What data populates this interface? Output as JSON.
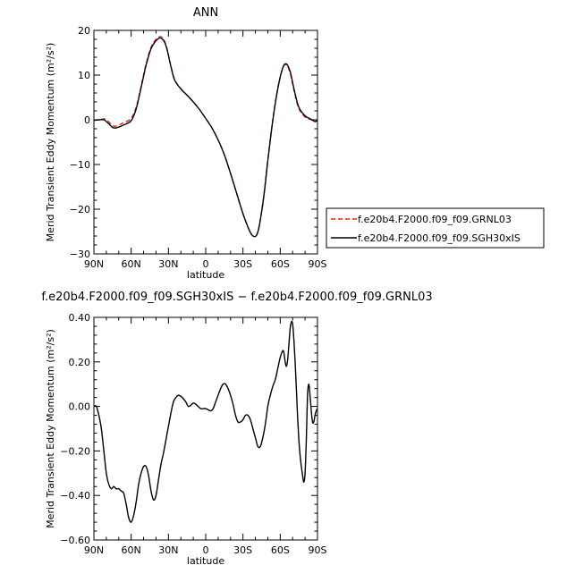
{
  "chart_data": [
    {
      "type": "line",
      "title": "ANN",
      "xlabel": "latitude",
      "ylabel": "Merid Transient Eddy Momentum  (m²/s²)",
      "x_ticks": [
        "90N",
        "60N",
        "30N",
        "0",
        "30S",
        "60S",
        "90S"
      ],
      "x_tick_values": [
        90,
        60,
        30,
        0,
        -30,
        -60,
        -90
      ],
      "y_ticks": [
        "20",
        "10",
        "0",
        "−10",
        "−20",
        "−30"
      ],
      "y_tick_values": [
        20,
        10,
        0,
        -10,
        -20,
        -30
      ],
      "xlim": [
        90,
        -90
      ],
      "ylim": [
        -30,
        20
      ],
      "legend": {
        "placement": "right",
        "entries": [
          "f.e20b4.F2000.f09_f09.GRNL03",
          "f.e20b4.F2000.f09_f09.SGH30xIS"
        ]
      },
      "series": [
        {
          "name": "f.e20b4.F2000.f09_f09.GRNL03",
          "color": "#e0201b",
          "dash": "dashed",
          "x": [
            90,
            86,
            82,
            80,
            78,
            75,
            72,
            68,
            64,
            60,
            56,
            52,
            48,
            44,
            40,
            37,
            35,
            33,
            31,
            28,
            25,
            20,
            15,
            10,
            5,
            0,
            -5,
            -10,
            -15,
            -20,
            -25,
            -30,
            -34,
            -37,
            -40,
            -42,
            -44,
            -47,
            -50,
            -54,
            -58,
            -62,
            -65,
            -68,
            -70,
            -72,
            -75,
            -80,
            -85,
            -88,
            -90
          ],
          "y": [
            -0.1,
            0.0,
            0.2,
            0.0,
            -0.5,
            -1.3,
            -1.4,
            -0.9,
            -0.4,
            0.3,
            2.8,
            7.5,
            12.5,
            16.2,
            18.0,
            18.6,
            18.4,
            17.5,
            15.8,
            12.0,
            9.0,
            7.0,
            5.5,
            4.0,
            2.3,
            0.3,
            -1.8,
            -4.5,
            -7.8,
            -12.0,
            -16.5,
            -21.0,
            -24.0,
            -25.7,
            -26.1,
            -25.0,
            -22.3,
            -16.5,
            -9.0,
            0.0,
            7.0,
            11.5,
            12.3,
            10.5,
            8.0,
            5.5,
            2.5,
            0.6,
            0.0,
            -0.3,
            -0.2
          ]
        },
        {
          "name": "f.e20b4.F2000.f09_f09.SGH30xIS",
          "color": "#000000",
          "dash": "solid",
          "x": [
            90,
            86,
            82,
            80,
            78,
            75,
            72,
            68,
            64,
            60,
            56,
            52,
            48,
            44,
            40,
            37,
            35,
            33,
            31,
            28,
            25,
            20,
            15,
            10,
            5,
            0,
            -5,
            -10,
            -15,
            -20,
            -25,
            -30,
            -34,
            -37,
            -40,
            -42,
            -44,
            -47,
            -50,
            -54,
            -58,
            -62,
            -65,
            -68,
            -70,
            -72,
            -75,
            -80,
            -85,
            -88,
            -90
          ],
          "y": [
            -0.1,
            0.0,
            0.0,
            -0.4,
            -0.9,
            -1.7,
            -1.8,
            -1.4,
            -0.9,
            -0.2,
            2.4,
            7.2,
            12.2,
            15.9,
            17.7,
            18.3,
            18.1,
            17.3,
            15.6,
            11.9,
            8.9,
            6.9,
            5.5,
            4.0,
            2.3,
            0.3,
            -1.8,
            -4.5,
            -7.8,
            -12.0,
            -16.5,
            -21.0,
            -24.0,
            -25.7,
            -26.1,
            -25.1,
            -22.4,
            -16.7,
            -9.2,
            -0.2,
            6.9,
            11.6,
            12.5,
            10.8,
            8.3,
            5.8,
            2.8,
            0.9,
            0.1,
            -0.4,
            -0.2
          ]
        }
      ]
    },
    {
      "type": "line",
      "title": "f.e20b4.F2000.f09_f09.SGH30xIS − f.e20b4.F2000.f09_f09.GRNL03",
      "xlabel": "latitude",
      "ylabel": "Merid Transient Eddy Momentum  (m²/s²)",
      "x_ticks": [
        "90N",
        "60N",
        "30N",
        "0",
        "30S",
        "60S",
        "90S"
      ],
      "x_tick_values": [
        90,
        60,
        30,
        0,
        -30,
        -60,
        -90
      ],
      "y_ticks": [
        "0.40",
        "0.20",
        "0.00",
        "−0.20",
        "−0.40",
        "−0.60"
      ],
      "y_tick_values": [
        0.4,
        0.2,
        0.0,
        -0.2,
        -0.4,
        -0.6
      ],
      "xlim": [
        90,
        -90
      ],
      "ylim": [
        -0.6,
        0.4
      ],
      "series": [
        {
          "color": "#000000",
          "dash": "solid",
          "x": [
            90,
            88,
            86,
            84,
            82,
            80,
            78,
            76,
            74,
            72,
            70,
            68,
            66,
            64,
            62,
            60,
            58,
            56,
            54,
            52,
            50,
            48,
            46,
            44,
            42,
            40,
            38,
            36,
            34,
            32,
            30,
            28,
            26,
            24,
            22,
            20,
            18,
            16,
            14,
            12,
            10,
            8,
            6,
            4,
            2,
            0,
            -2,
            -4,
            -6,
            -8,
            -10,
            -12,
            -14,
            -16,
            -18,
            -20,
            -22,
            -24,
            -26,
            -28,
            -30,
            -32,
            -34,
            -36,
            -38,
            -40,
            -42,
            -44,
            -46,
            -48,
            -50,
            -52,
            -54,
            -56,
            -58,
            -60,
            -62,
            -63,
            -64,
            -65,
            -66,
            -67,
            -68,
            -69,
            -70,
            -71,
            -72,
            -73,
            -74,
            -75,
            -76,
            -77,
            -78,
            -79,
            -80,
            -81,
            -82,
            -83,
            -84,
            -85,
            -86,
            -87,
            -88,
            -89,
            -90
          ],
          "y": [
            0.0,
            0.0,
            -0.04,
            -0.1,
            -0.2,
            -0.3,
            -0.35,
            -0.37,
            -0.36,
            -0.37,
            -0.37,
            -0.38,
            -0.39,
            -0.44,
            -0.5,
            -0.52,
            -0.49,
            -0.43,
            -0.35,
            -0.3,
            -0.27,
            -0.27,
            -0.31,
            -0.38,
            -0.42,
            -0.4,
            -0.33,
            -0.26,
            -0.21,
            -0.15,
            -0.09,
            -0.03,
            0.02,
            0.04,
            0.05,
            0.045,
            0.035,
            0.02,
            0.0,
            0.005,
            0.015,
            0.01,
            0.0,
            -0.01,
            -0.01,
            -0.01,
            -0.015,
            -0.02,
            -0.01,
            0.02,
            0.05,
            0.08,
            0.1,
            0.1,
            0.08,
            0.05,
            0.01,
            -0.04,
            -0.07,
            -0.07,
            -0.06,
            -0.04,
            -0.04,
            -0.06,
            -0.1,
            -0.14,
            -0.18,
            -0.18,
            -0.14,
            -0.08,
            0.0,
            0.05,
            0.09,
            0.12,
            0.17,
            0.22,
            0.25,
            0.24,
            0.2,
            0.18,
            0.21,
            0.28,
            0.35,
            0.38,
            0.37,
            0.3,
            0.2,
            0.08,
            -0.05,
            -0.15,
            -0.22,
            -0.27,
            -0.31,
            -0.34,
            -0.3,
            -0.15,
            0.05,
            0.1,
            0.05,
            -0.02,
            -0.07,
            -0.07,
            -0.04,
            -0.02,
            -0.01
          ]
        }
      ]
    }
  ]
}
